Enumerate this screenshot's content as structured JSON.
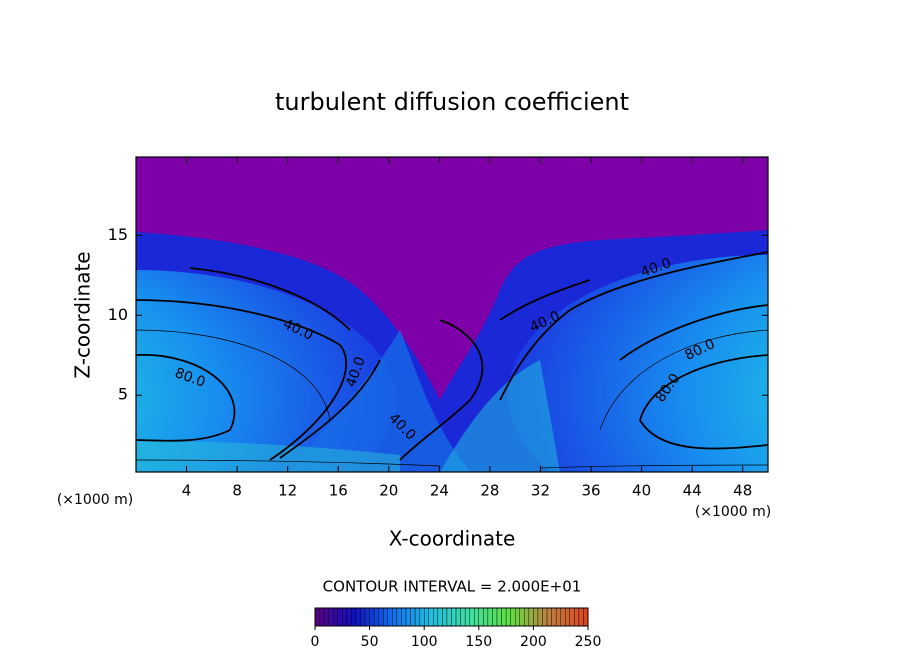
{
  "chart_data": {
    "type": "contour",
    "title": "turbulent diffusion coefficient",
    "x_label": "X-coordinate",
    "y_label": "Z-coordinate",
    "x_unit_label": "(×1000 m)",
    "xlim": [
      0,
      50
    ],
    "xticks": [
      4,
      8,
      12,
      16,
      20,
      24,
      28,
      32,
      36,
      40,
      44,
      48
    ],
    "ylim": [
      0.2,
      19.9
    ],
    "yticks": [
      5,
      10,
      15
    ],
    "contour_interval_text": "CONTOUR INTERVAL = 2.000E+01",
    "contour_labels": [
      {
        "value": 40,
        "label": "40.0"
      },
      {
        "value": 80,
        "label": "80.0"
      },
      {
        "value": 40,
        "label": "40.0"
      },
      {
        "value": 40,
        "label": "40.0"
      },
      {
        "value": 40,
        "label": "40.0"
      },
      {
        "value": 40,
        "label": "40.0"
      },
      {
        "value": 80,
        "label": "80.0"
      },
      {
        "value": 80,
        "label": "80.0"
      }
    ],
    "colorbar": {
      "lim": [
        0,
        250
      ],
      "ticks": [
        0,
        50,
        100,
        150,
        200,
        250
      ],
      "colors": [
        "#5a0080",
        "#1010c0",
        "#1070f0",
        "#20c0e0",
        "#40e0a0",
        "#60e040",
        "#c08040",
        "#e04020"
      ]
    }
  }
}
